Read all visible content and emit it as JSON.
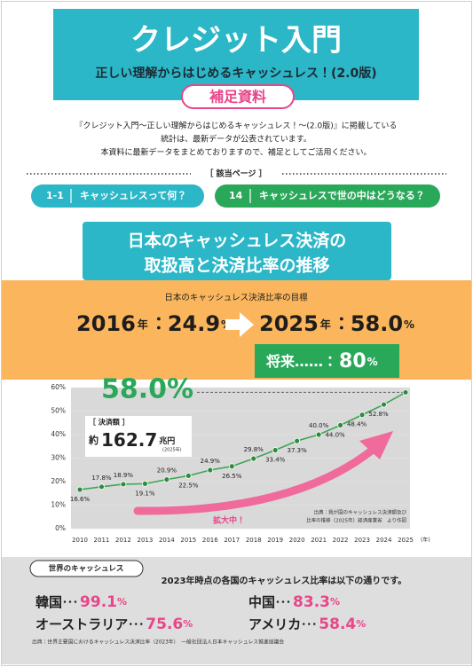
{
  "header": {
    "title": "クレジット入門",
    "subtitle": "正しい理解からはじめるキャッシュレス！(2.0版)",
    "badge": "補足資料"
  },
  "intro": [
    "『クレジット入門～正しい理解からはじめるキャッシュレス！～(2.0版)』に掲載している",
    "統計は、最新データが公表されています。",
    "本資料に最新データをまとめておりますので、補足としてご活用ください。"
  ],
  "related": {
    "heading": "［ 該当ページ ］",
    "pages": [
      {
        "page": "1-1",
        "title": "キャッシュレスって何？"
      },
      {
        "page": "14",
        "title": "キャッシュレスで世の中はどうなる？"
      }
    ]
  },
  "section_title": [
    "日本のキャッシュレス決済の",
    "取扱高と決済比率の推移"
  ],
  "target": {
    "heading": "日本のキャッシュレス決済比率の目標",
    "year_unit": "年",
    "separator": "：",
    "percent_unit": "%",
    "items": [
      {
        "year": "2016",
        "value": "24.9"
      },
      {
        "year": "2025",
        "value": "58.0"
      }
    ],
    "future": {
      "label": "将来……",
      "value": "80"
    }
  },
  "chart_data": {
    "type": "line",
    "categories": [
      "2010",
      "2011",
      "2012",
      "2013",
      "2014",
      "2015",
      "2016",
      "2017",
      "2018",
      "2019",
      "2020",
      "2021",
      "2022",
      "2023",
      "2024",
      "2025"
    ],
    "values": [
      16.6,
      17.8,
      18.9,
      19.1,
      20.9,
      22.5,
      24.9,
      26.5,
      29.8,
      33.4,
      37.3,
      40.0,
      44.0,
      48.4,
      52.8,
      58.0
    ],
    "value_labels": [
      "16.6%",
      "17.8%",
      "18.9%",
      "19.1%",
      "20.9%",
      "22.5%",
      "24.9%",
      "26.5%",
      "29.8%",
      "33.4%",
      "37.3%",
      "40.0%",
      "44.0%",
      "48.4%",
      "52.8%",
      "58.0%"
    ],
    "color": "#3aa655",
    "ylim": [
      0,
      60
    ],
    "yticks": [
      {
        "value": 0,
        "label": "0%"
      },
      {
        "value": 10,
        "label": "10%"
      },
      {
        "value": 20,
        "label": "20%"
      },
      {
        "value": 30,
        "label": "30%"
      },
      {
        "value": 40,
        "label": "40%"
      },
      {
        "value": 50,
        "label": "50%"
      },
      {
        "value": 60,
        "label": "60%"
      }
    ],
    "grid": "bands",
    "x_unit": "(年)",
    "annotations": {
      "highlight": "58.0%",
      "amount_heading": "［ 決済額 ］",
      "amount_prefix": "約",
      "amount": "162.7",
      "amount_unit": "兆円",
      "amount_note": "(2025年)",
      "trend": "拡大中！",
      "source": [
        "出典：我が国のキャッシュレス決済額及び",
        "比率の推移（2025年）経済産業省　より作図"
      ]
    }
  },
  "world": {
    "tab": "世界のキャッシュレス",
    "statement": "2023年時点の各国のキャッシュレス比率は以下の通りです。",
    "dots": "･･･",
    "percent_unit": "%",
    "countries": [
      {
        "name": "韓国",
        "value": "99.1"
      },
      {
        "name": "中国",
        "value": "83.3"
      },
      {
        "name": "オーストラリア",
        "value": "75.6"
      },
      {
        "name": "アメリカ",
        "value": "58.4"
      }
    ],
    "source": "出典：世界主要国におけるキャッシュレス決済比率（2023年）　一般社団法人日本キャッシュレス推進協議会"
  }
}
